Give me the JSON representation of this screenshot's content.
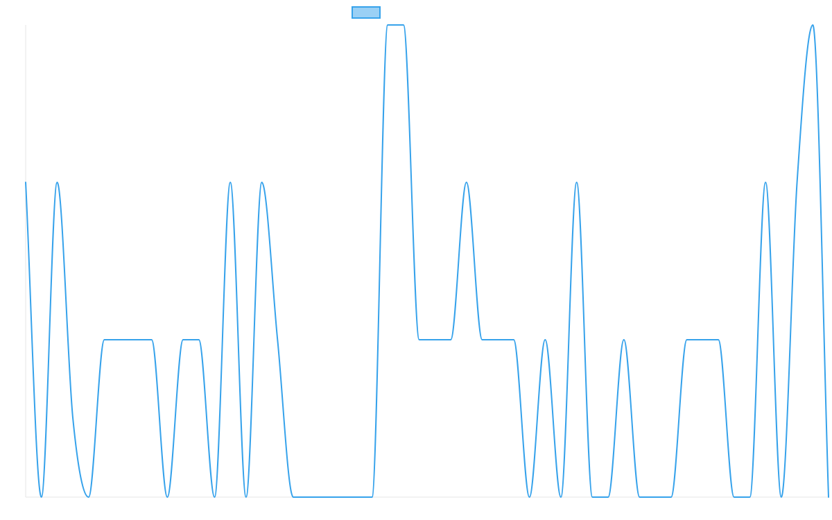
{
  "chart_data": {
    "type": "line",
    "title": "",
    "xlabel": "",
    "ylabel": "",
    "ylim": [
      0,
      3
    ],
    "grid": false,
    "legend": "top-center",
    "series": [
      {
        "color": "#36a2eb",
        "fill_color": "#9ad0f5",
        "values": [
          2,
          0,
          2,
          0.5,
          0,
          1,
          1,
          1,
          1,
          0,
          1,
          1,
          0,
          2,
          0,
          2,
          1,
          0,
          0,
          0,
          0,
          0,
          0,
          3,
          3,
          1,
          1,
          1,
          2,
          1,
          1,
          1,
          0,
          1,
          0,
          2,
          0,
          0,
          1,
          0,
          0,
          0,
          1,
          1,
          1,
          0,
          0,
          2,
          0,
          2,
          3,
          0
        ]
      }
    ]
  }
}
